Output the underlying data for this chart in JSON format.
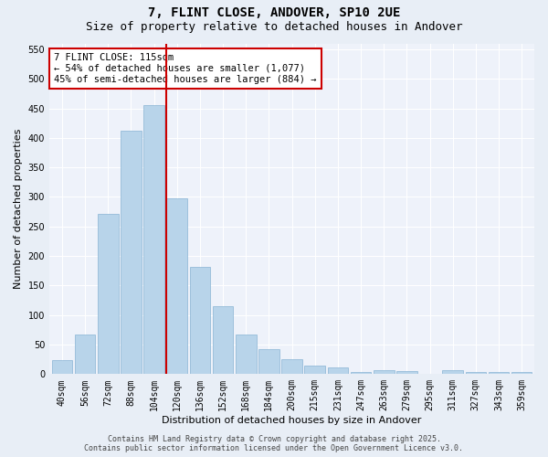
{
  "title": "7, FLINT CLOSE, ANDOVER, SP10 2UE",
  "subtitle": "Size of property relative to detached houses in Andover",
  "xlabel": "Distribution of detached houses by size in Andover",
  "ylabel": "Number of detached properties",
  "footer_line1": "Contains HM Land Registry data © Crown copyright and database right 2025.",
  "footer_line2": "Contains public sector information licensed under the Open Government Licence v3.0.",
  "categories": [
    "40sqm",
    "56sqm",
    "72sqm",
    "88sqm",
    "104sqm",
    "120sqm",
    "136sqm",
    "152sqm",
    "168sqm",
    "184sqm",
    "200sqm",
    "215sqm",
    "231sqm",
    "247sqm",
    "263sqm",
    "279sqm",
    "295sqm",
    "311sqm",
    "327sqm",
    "343sqm",
    "359sqm"
  ],
  "values": [
    23,
    67,
    271,
    412,
    455,
    298,
    181,
    115,
    67,
    42,
    25,
    14,
    11,
    4,
    6,
    5,
    1,
    6,
    3,
    4,
    3
  ],
  "bar_color": "#b8d4ea",
  "bar_edge_color": "#88b4d4",
  "vline_color": "#cc0000",
  "vline_index": 5,
  "annotation_title": "7 FLINT CLOSE: 115sqm",
  "annotation_line1": "← 54% of detached houses are smaller (1,077)",
  "annotation_line2": "45% of semi-detached houses are larger (884) →",
  "annotation_box_color": "#cc0000",
  "ylim": [
    0,
    560
  ],
  "yticks": [
    0,
    50,
    100,
    150,
    200,
    250,
    300,
    350,
    400,
    450,
    500,
    550
  ],
  "bg_color": "#e8eef6",
  "plot_bg_color": "#eef2fa",
  "grid_color": "#ffffff",
  "title_fontsize": 10,
  "subtitle_fontsize": 9,
  "axis_label_fontsize": 8,
  "tick_fontsize": 7,
  "annotation_fontsize": 7.5,
  "footer_fontsize": 6
}
